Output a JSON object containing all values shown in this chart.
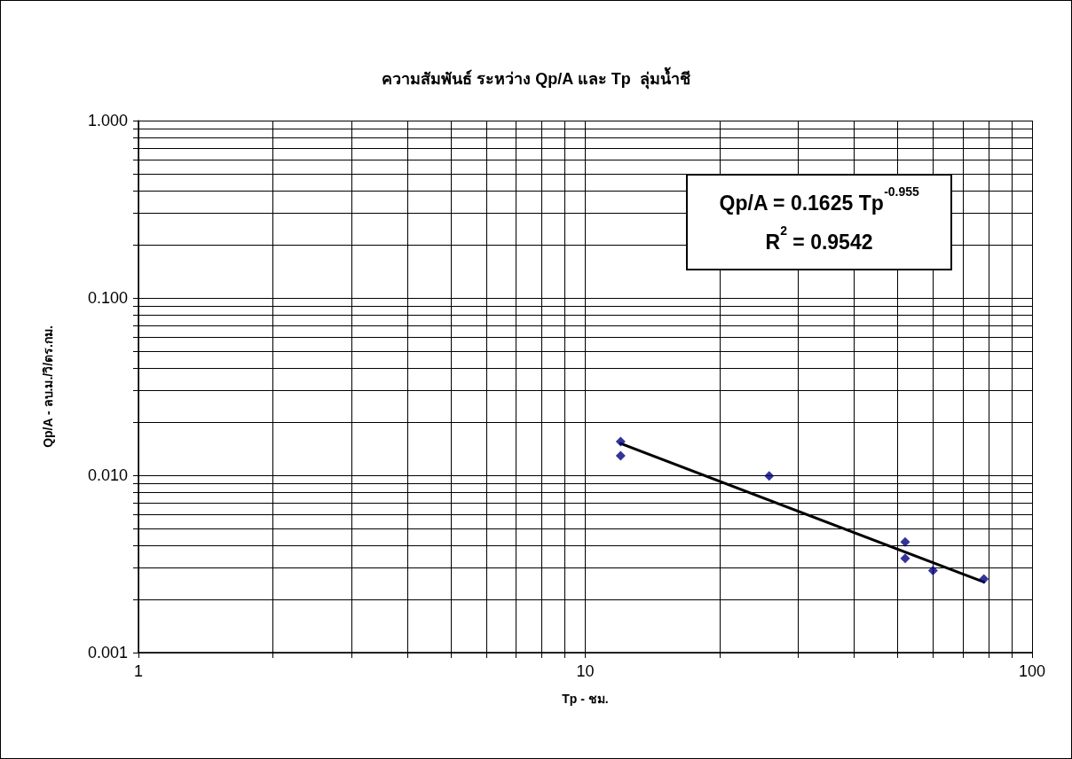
{
  "chart_data": {
    "type": "scatter",
    "title": "ความสัมพันธ์ ระหว่าง Qp/A และ Tp  ลุ่มน้ำชี",
    "xlabel": "Tp - ชม.",
    "ylabel": "Qp/A - ลบ.ม./วิ/ตร.กม.",
    "annotations": [
      "Qp/A = 0.1625 Tp$^{-0.955}$",
      "R$^{2}$ = 0.9542"
    ],
    "series": [
      {
        "color": "#000080",
        "marker": "diamond",
        "x": [
          12,
          12,
          25.8,
          52,
          52,
          60,
          78
        ],
        "values": [
          0.0155,
          0.0129,
          0.0099,
          0.0042,
          0.0034,
          0.0029,
          0.0026
        ]
      },
      {
        "type": "line",
        "color": "#000000",
        "line_style": "solid",
        "x": [
          12,
          78
        ],
        "values": [
          0.0151,
          0.0025
        ]
      }
    ],
    "log": "xy",
    "xlim": [
      1,
      100
    ],
    "ylim": [
      0.001,
      1
    ],
    "xticks": [
      1,
      {
        "value": 2,
        "label": null
      },
      {
        "value": 3,
        "label": null
      },
      {
        "value": 4,
        "label": null
      },
      {
        "value": 5,
        "label": null
      },
      {
        "value": 6,
        "label": null
      },
      {
        "value": 7,
        "label": null
      },
      {
        "value": 8,
        "label": null
      },
      {
        "value": 9,
        "label": null
      },
      10,
      {
        "value": 20,
        "label": null
      },
      {
        "value": 30,
        "label": null
      },
      {
        "value": 40,
        "label": null
      },
      {
        "value": 50,
        "label": null
      },
      {
        "value": 60,
        "label": null
      },
      {
        "value": 70,
        "label": null
      },
      {
        "value": 80,
        "label": null
      },
      {
        "value": 90,
        "label": null
      },
      100
    ],
    "yticks": [
      {
        "value": 0.001,
        "label": "0.001"
      },
      {
        "value": 0.002,
        "label": null
      },
      {
        "value": 0.003,
        "label": null
      },
      {
        "value": 0.004,
        "label": null
      },
      {
        "value": 0.005,
        "label": null
      },
      {
        "value": 0.006,
        "label": null
      },
      {
        "value": 0.007,
        "label": null
      },
      {
        "value": 0.008,
        "label": null
      },
      {
        "value": 0.009,
        "label": null
      },
      {
        "value": 0.01,
        "label": "0.010"
      },
      {
        "value": 0.02,
        "label": null
      },
      {
        "value": 0.03,
        "label": null
      },
      {
        "value": 0.04,
        "label": null
      },
      {
        "value": 0.05,
        "label": null
      },
      {
        "value": 0.06,
        "label": null
      },
      {
        "value": 0.07,
        "label": null
      },
      {
        "value": 0.08,
        "label": null
      },
      {
        "value": 0.09,
        "label": null
      },
      {
        "value": 0.1,
        "label": "0.100"
      },
      {
        "value": 0.2,
        "label": null
      },
      {
        "value": 0.3,
        "label": null
      },
      {
        "value": 0.4,
        "label": null
      },
      {
        "value": 0.5,
        "label": null
      },
      {
        "value": 0.6,
        "label": null
      },
      {
        "value": 0.7,
        "label": null
      },
      {
        "value": 0.8,
        "label": null
      },
      {
        "value": 0.9,
        "label": null
      },
      {
        "value": 1,
        "label": "1.000"
      }
    ],
    "grid": true
  }
}
